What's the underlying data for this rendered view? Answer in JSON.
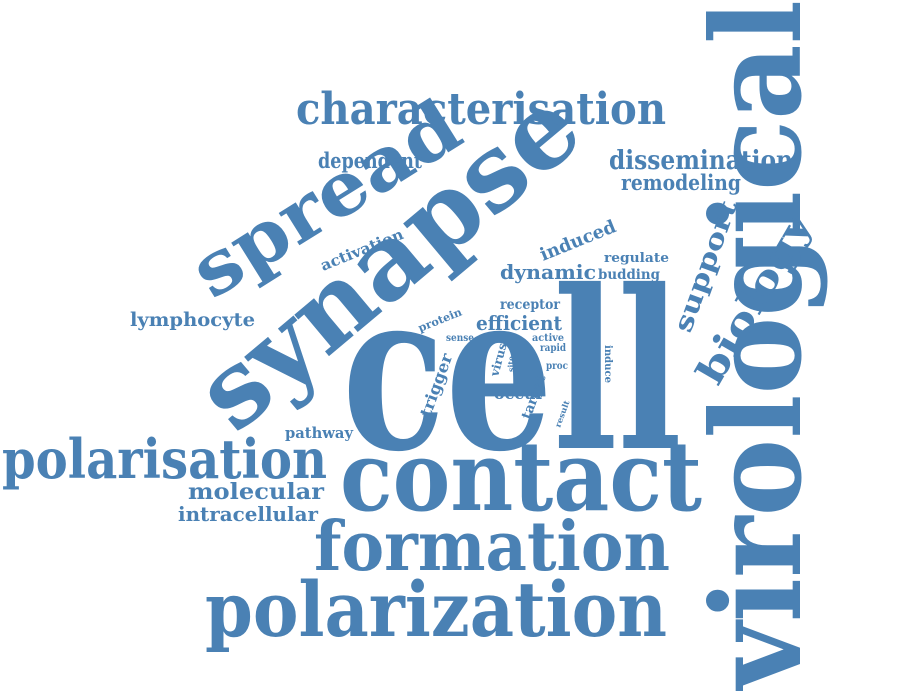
{
  "cloud": {
    "color": "#4a81b4",
    "words": {
      "virological": "virological",
      "cell": "cell",
      "synapse": "synapse",
      "contact": "contact",
      "polarization": "polarization",
      "formation": "formation",
      "spread": "spread",
      "characterisation": "characterisation",
      "polarisation": "polarisation",
      "biology": "biology",
      "support": "support",
      "dissemination": "dissemination",
      "remodeling": "remodeling",
      "dependent": "dependent",
      "molecular": "molecular",
      "intracellular": "intracellular",
      "lymphocyte": "lymphocyte",
      "dynamic": "dynamic",
      "induced": "induced",
      "efficient": "efficient",
      "receptor": "receptor",
      "regulate": "regulate",
      "budding": "budding",
      "activation": "activation",
      "pathway": "pathway",
      "protein": "protein",
      "sense": "sense",
      "active": "active",
      "rapid": "rapid",
      "virus": "virus",
      "site": "site",
      "proc": "proc",
      "induce": "induce",
      "trigger": "trigger",
      "occur": "occur",
      "target": "target",
      "result": "result"
    }
  }
}
